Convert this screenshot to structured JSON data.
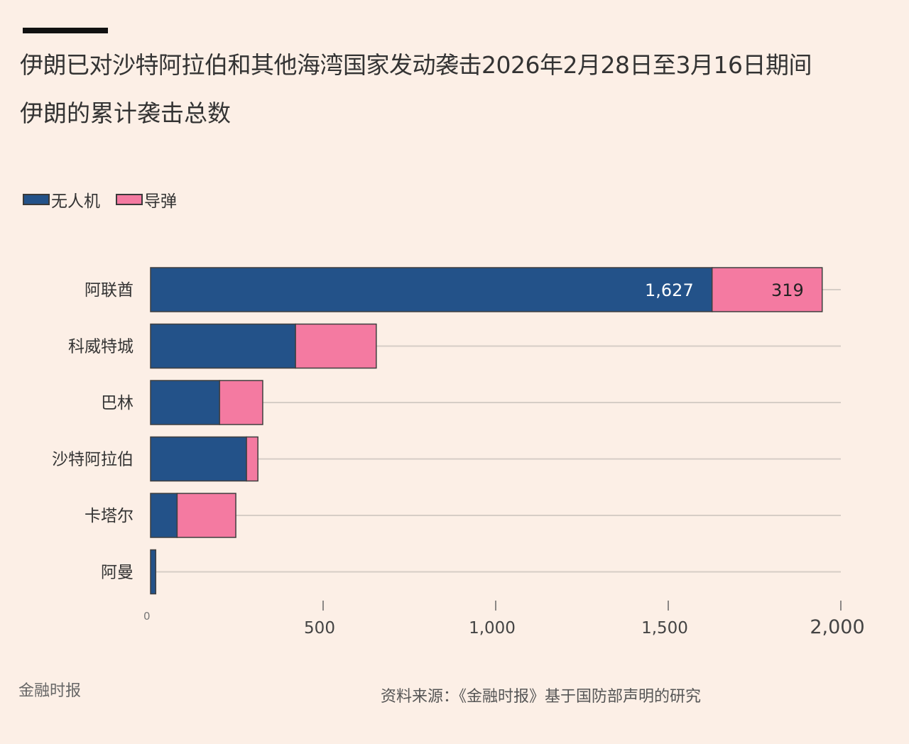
{
  "title": "伊朗已对沙特阿拉伯和其他海湾国家发动袭击2026年2月28日至3月16日期间",
  "subtitle": "伊朗的累计袭击总数",
  "footer": {
    "publisher": "金融时报",
    "source": "资料来源：《金融时报》基于国防部声明的研究"
  },
  "colors": {
    "drone": "#235289",
    "missile": "#f47aa1",
    "grid": "#d6cdc6",
    "text": "#333333"
  },
  "chart_data": {
    "type": "bar",
    "orientation": "horizontal",
    "stacked": true,
    "title": "伊朗的累计袭击总数",
    "categories": [
      "阿联酋",
      "科威特城",
      "巴林",
      "沙特阿拉伯",
      "卡塔尔",
      "阿曼"
    ],
    "series": [
      {
        "name": "无人机",
        "values": [
          1627,
          420,
          200,
          278,
          77,
          15
        ]
      },
      {
        "name": "导弹",
        "values": [
          319,
          234,
          125,
          33,
          170,
          0
        ]
      }
    ],
    "data_labels": [
      {
        "category": "阿联酋",
        "series": "无人机",
        "text": "1,627"
      },
      {
        "category": "阿联酋",
        "series": "导弹",
        "text": "319"
      }
    ],
    "xlim": [
      0,
      2000
    ],
    "xticks": [
      0,
      500,
      1000,
      1500,
      2000
    ],
    "xtick_labels": [
      "0",
      "500",
      "1,000",
      "1,500",
      "2,000"
    ],
    "legend": "top-left",
    "grid": true
  }
}
